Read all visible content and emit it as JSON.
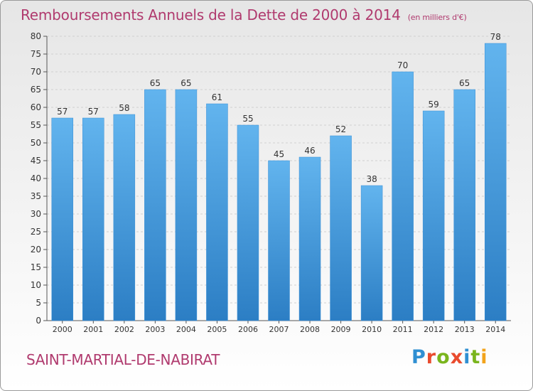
{
  "title": "Remboursements Annuels de la Dette de 2000 à 2014",
  "unit": "(en milliers d'€)",
  "commune": "SAINT-MARTIAL-DE-NABIRAT",
  "logo": {
    "letters": [
      "P",
      "r",
      "o",
      "x",
      "i",
      "t",
      "i"
    ],
    "colors": [
      "#2f8fd2",
      "#e94b2e",
      "#7ab51d",
      "#e94b2e",
      "#2f8fd2",
      "#7ab51d",
      "#f2a31b"
    ]
  },
  "colors": {
    "bar": "#4aa0e0",
    "bar_light": "#5fb3ee",
    "bar_dark": "#2b7cc2",
    "title": "#b03a6e"
  },
  "chart_data": {
    "type": "bar",
    "title": "Remboursements Annuels de la Dette de 2000 à 2014",
    "ylabel": "en milliers d'€",
    "xlabel": "",
    "categories": [
      "2000",
      "2001",
      "2002",
      "2003",
      "2004",
      "2005",
      "2006",
      "2007",
      "2008",
      "2009",
      "2010",
      "2011",
      "2012",
      "2013",
      "2014"
    ],
    "values": [
      57,
      57,
      58,
      65,
      65,
      61,
      55,
      45,
      46,
      52,
      38,
      70,
      59,
      65,
      78
    ],
    "ylim": [
      0,
      80
    ],
    "yticks": [
      0,
      5,
      10,
      15,
      20,
      25,
      30,
      35,
      40,
      45,
      50,
      55,
      60,
      65,
      70,
      75,
      80
    ],
    "grid": true
  }
}
